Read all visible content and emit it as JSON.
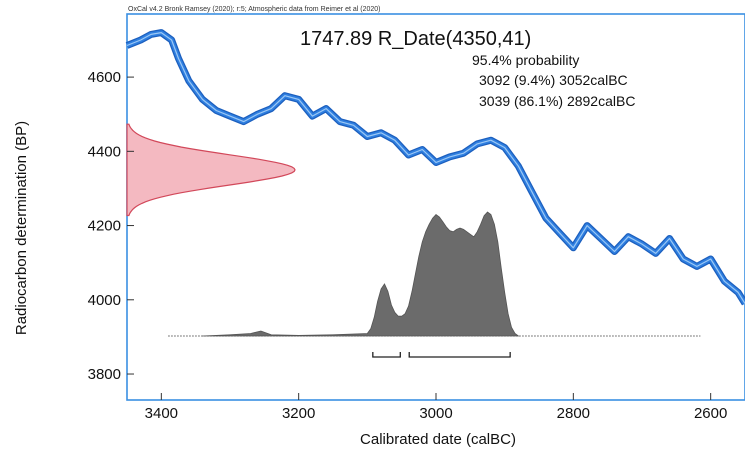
{
  "header_note": "OxCal v4.2 Bronk Ramsey (2020); r:5; Atmospheric data from Reimer et al (2020)",
  "sample_title": "1747.89 R_Date(4350,41)",
  "probability_title": "95.4% probability",
  "ranges": [
    {
      "text": "3092 (9.4%) 3052calBC",
      "from": 3092,
      "to": 3052,
      "percent": 9.4
    },
    {
      "text": "3039 (86.1%) 2892calBC",
      "from": 3039,
      "to": 2892,
      "percent": 86.1
    }
  ],
  "colors": {
    "calibration_curve": "#2f7fe0",
    "curve_edge": "#1c5fbe",
    "radiocarbon_fill": "#f4b9c1",
    "radiocarbon_edge": "#d2485a",
    "posterior_fill": "#6b6b6b",
    "axis_frame": "#3a8fe3",
    "text": "#111111"
  },
  "chart_data": {
    "type": "area",
    "title": "1747.89 R_Date(4350,41)",
    "xlabel": "Calibrated date (calBC)",
    "ylabel": "Radiocarbon determination (BP)",
    "xlim": [
      3450,
      2550
    ],
    "ylim": [
      3730,
      4770
    ],
    "x_ticks": [
      3400,
      3200,
      3000,
      2800,
      2600
    ],
    "y_ticks": [
      3800,
      4000,
      4200,
      4400,
      4600
    ],
    "grid": false,
    "series": [
      {
        "kind": "calibration-curve",
        "x": [
          3450,
          3430,
          3415,
          3400,
          3385,
          3375,
          3360,
          3340,
          3320,
          3300,
          3280,
          3260,
          3240,
          3220,
          3200,
          3180,
          3160,
          3140,
          3120,
          3100,
          3080,
          3060,
          3040,
          3020,
          3000,
          2980,
          2960,
          2940,
          2920,
          2900,
          2880,
          2860,
          2840,
          2820,
          2800,
          2780,
          2760,
          2740,
          2720,
          2700,
          2680,
          2660,
          2640,
          2620,
          2600,
          2580,
          2560,
          2550
        ],
        "y": [
          4685,
          4700,
          4715,
          4720,
          4700,
          4650,
          4590,
          4540,
          4510,
          4495,
          4480,
          4500,
          4515,
          4550,
          4540,
          4495,
          4515,
          4480,
          4470,
          4440,
          4450,
          4430,
          4390,
          4405,
          4370,
          4385,
          4395,
          4420,
          4430,
          4410,
          4360,
          4290,
          4220,
          4180,
          4140,
          4200,
          4165,
          4130,
          4170,
          4150,
          4125,
          4165,
          4110,
          4090,
          4110,
          4050,
          4020,
          3990
        ]
      },
      {
        "kind": "radiocarbon-distribution",
        "mean": 4350,
        "sd": 41
      },
      {
        "kind": "calibrated-probability",
        "x": [
          3340,
          3300,
          3270,
          3255,
          3240,
          3200,
          3150,
          3100,
          3095,
          3090,
          3085,
          3080,
          3075,
          3070,
          3065,
          3060,
          3055,
          3050,
          3045,
          3040,
          3035,
          3030,
          3025,
          3020,
          3015,
          3010,
          3005,
          3000,
          2995,
          2990,
          2985,
          2980,
          2975,
          2970,
          2965,
          2960,
          2955,
          2950,
          2945,
          2940,
          2935,
          2930,
          2925,
          2920,
          2915,
          2910,
          2905,
          2900,
          2895,
          2890,
          2885,
          2880
        ],
        "y": [
          0,
          0.01,
          0.02,
          0.04,
          0.01,
          0.005,
          0.01,
          0.02,
          0.06,
          0.15,
          0.28,
          0.38,
          0.42,
          0.36,
          0.25,
          0.19,
          0.16,
          0.16,
          0.18,
          0.24,
          0.36,
          0.5,
          0.64,
          0.76,
          0.84,
          0.9,
          0.95,
          0.98,
          0.96,
          0.92,
          0.88,
          0.85,
          0.84,
          0.86,
          0.87,
          0.86,
          0.84,
          0.82,
          0.8,
          0.84,
          0.9,
          0.97,
          1.0,
          0.98,
          0.9,
          0.76,
          0.55,
          0.35,
          0.18,
          0.07,
          0.02,
          0
        ]
      }
    ]
  }
}
